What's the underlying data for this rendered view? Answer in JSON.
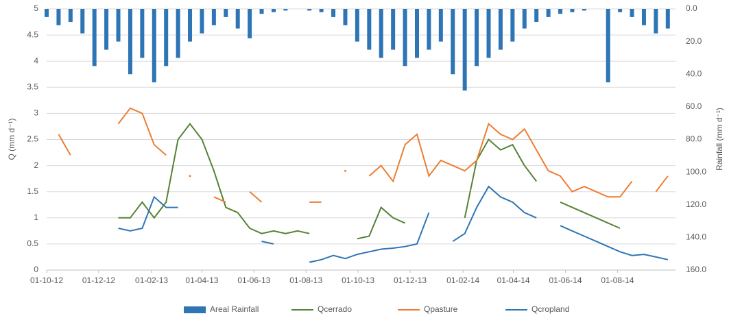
{
  "chart_data": {
    "type": "bar-line",
    "y_label": "Q (mm d⁻¹)",
    "y2_label": "Rainfall (mm d⁻¹)",
    "x": [
      "2012-10-01",
      "2012-10-15",
      "2012-10-29",
      "2012-11-12",
      "2012-11-26",
      "2012-12-10",
      "2012-12-24",
      "2013-01-07",
      "2013-01-21",
      "2013-02-04",
      "2013-02-18",
      "2013-03-04",
      "2013-03-18",
      "2013-04-01",
      "2013-04-15",
      "2013-04-29",
      "2013-05-13",
      "2013-05-27",
      "2013-06-10",
      "2013-06-24",
      "2013-07-08",
      "2013-07-22",
      "2013-08-05",
      "2013-08-19",
      "2013-09-02",
      "2013-09-16",
      "2013-09-30",
      "2013-10-14",
      "2013-10-28",
      "2013-11-11",
      "2013-11-25",
      "2013-12-09",
      "2013-12-23",
      "2014-01-06",
      "2014-01-20",
      "2014-02-03",
      "2014-02-17",
      "2014-03-03",
      "2014-03-17",
      "2014-03-31",
      "2014-04-14",
      "2014-04-28",
      "2014-05-12",
      "2014-05-26",
      "2014-06-09",
      "2014-06-23",
      "2014-07-07",
      "2014-07-21",
      "2014-08-04",
      "2014-08-18",
      "2014-09-01",
      "2014-09-15",
      "2014-09-29"
    ],
    "xlim": [
      "2012-10-01",
      "2014-10-08"
    ],
    "xticks": [
      {
        "value": "2012-10-01",
        "label": "01-10-12"
      },
      {
        "value": "2012-12-01",
        "label": "01-12-12"
      },
      {
        "value": "2013-02-01",
        "label": "01-02-13"
      },
      {
        "value": "2013-04-01",
        "label": "01-04-13"
      },
      {
        "value": "2013-06-01",
        "label": "01-06-13"
      },
      {
        "value": "2013-08-01",
        "label": "01-08-13"
      },
      {
        "value": "2013-10-01",
        "label": "01-10-13"
      },
      {
        "value": "2013-12-01",
        "label": "01-12-13"
      },
      {
        "value": "2014-02-01",
        "label": "01-02-14"
      },
      {
        "value": "2014-04-01",
        "label": "01-04-14"
      },
      {
        "value": "2014-06-01",
        "label": "01-06-14"
      },
      {
        "value": "2014-08-01",
        "label": "01-08-14"
      }
    ],
    "ylim": [
      0,
      5
    ],
    "yticks": [
      0,
      0.5,
      1,
      1.5,
      2,
      2.5,
      3,
      3.5,
      4,
      4.5,
      5
    ],
    "y2lim": [
      0,
      160
    ],
    "y2_reversed": true,
    "y2ticks": [
      {
        "value": 0,
        "label": "0.0"
      },
      {
        "value": 20,
        "label": "20.0"
      },
      {
        "value": 40,
        "label": "40.0"
      },
      {
        "value": 60,
        "label": "60.0"
      },
      {
        "value": 80,
        "label": "80.0"
      },
      {
        "value": 100,
        "label": "100.0"
      },
      {
        "value": 120,
        "label": "120.0"
      },
      {
        "value": 140,
        "label": "140.0"
      },
      {
        "value": 160,
        "label": "160.0"
      }
    ],
    "grid": true,
    "legend": "bottom",
    "series": [
      {
        "name": "Areal Rainfall",
        "kind": "bar",
        "axis": "y2",
        "color": "#2e75b6",
        "values": [
          5,
          10,
          8,
          15,
          35,
          25,
          20,
          40,
          30,
          45,
          35,
          30,
          20,
          15,
          10,
          5,
          12,
          18,
          3,
          2,
          1,
          0,
          1,
          2,
          5,
          10,
          20,
          25,
          30,
          25,
          35,
          30,
          25,
          20,
          40,
          50,
          35,
          30,
          25,
          20,
          12,
          8,
          5,
          3,
          2,
          1,
          0,
          45,
          2,
          5,
          10,
          15,
          12
        ]
      },
      {
        "name": "Qcerrado",
        "kind": "line",
        "color": "#548235",
        "values": [
          null,
          null,
          null,
          null,
          null,
          null,
          1.0,
          1.0,
          1.3,
          1.0,
          1.3,
          2.5,
          2.8,
          2.5,
          1.9,
          1.2,
          1.1,
          0.8,
          0.7,
          0.75,
          0.7,
          0.75,
          0.7,
          null,
          null,
          null,
          0.6,
          0.65,
          1.2,
          1.0,
          0.9,
          null,
          null,
          null,
          null,
          1.0,
          2.1,
          2.5,
          2.3,
          2.4,
          2.0,
          1.7,
          null,
          1.3,
          1.2,
          1.1,
          1.0,
          0.9,
          0.8,
          null,
          null,
          null,
          null
        ]
      },
      {
        "name": "Qpasture",
        "kind": "line",
        "color": "#ed7d31",
        "values": [
          null,
          2.6,
          2.2,
          null,
          null,
          null,
          2.8,
          3.1,
          3.0,
          2.4,
          2.2,
          null,
          1.8,
          null,
          1.4,
          1.3,
          null,
          1.5,
          1.3,
          null,
          null,
          null,
          1.3,
          1.3,
          null,
          1.9,
          null,
          1.8,
          2.0,
          1.7,
          2.4,
          2.6,
          1.8,
          2.1,
          2.0,
          1.9,
          2.1,
          2.8,
          2.6,
          2.5,
          2.7,
          2.3,
          1.9,
          1.8,
          1.5,
          1.6,
          1.5,
          1.4,
          1.4,
          1.7,
          null,
          1.5,
          1.8
        ]
      },
      {
        "name": "Qcropland",
        "kind": "line",
        "color": "#2e75b6",
        "values": [
          null,
          null,
          null,
          null,
          null,
          null,
          0.8,
          0.75,
          0.8,
          1.4,
          1.2,
          1.2,
          null,
          null,
          null,
          null,
          null,
          null,
          0.55,
          0.5,
          null,
          null,
          0.15,
          0.2,
          0.28,
          0.22,
          0.3,
          0.35,
          0.4,
          0.42,
          0.45,
          0.5,
          1.1,
          null,
          0.55,
          0.7,
          1.2,
          1.6,
          1.4,
          1.3,
          1.1,
          1.0,
          null,
          0.85,
          0.75,
          0.65,
          0.55,
          0.45,
          0.35,
          0.28,
          0.3,
          0.25,
          0.2
        ]
      }
    ]
  }
}
